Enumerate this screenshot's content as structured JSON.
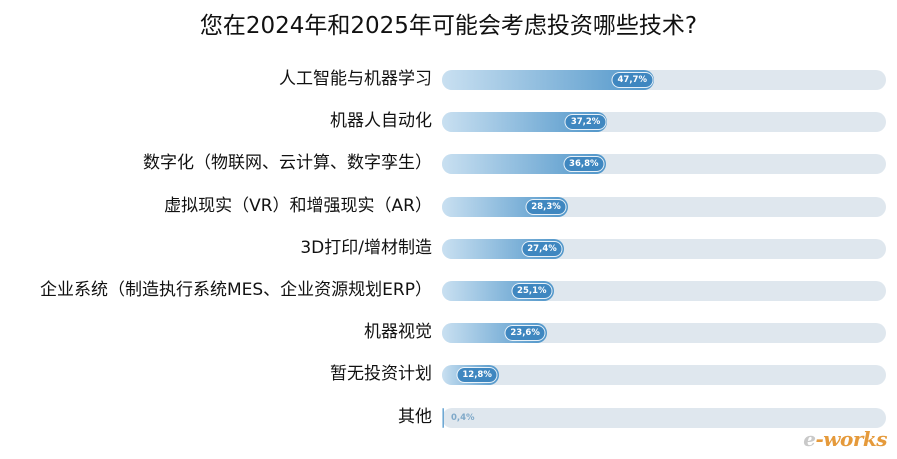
{
  "chart_data": {
    "type": "bar",
    "orientation": "horizontal",
    "title": "您在2024年和2025年可能会考虑投资哪些技术?",
    "categories": [
      "人工智能与机器学习",
      "机器人自动化",
      "数字化（物联网、云计算、数字孪生）",
      "虚拟现实（VR）和增强现实（AR）",
      "3D打印/增材制造",
      "企业系统（制造执行系统MES、企业资源规划ERP）",
      "机器视觉",
      "暂无投资计划",
      "其他"
    ],
    "values": [
      47.7,
      37.2,
      36.8,
      28.3,
      27.4,
      25.1,
      23.6,
      12.8,
      0.4
    ],
    "value_labels": [
      "47,7%",
      "37,2%",
      "36,8%",
      "28,3%",
      "27,4%",
      "25,1%",
      "23,6%",
      "12,8%",
      "0,4%"
    ],
    "xlim": [
      0,
      100
    ],
    "grid": false,
    "legend": "none",
    "colors": {
      "fill_start": "#c9e0f1",
      "fill_end": "#4f95c9",
      "track": "#dfe7ee",
      "pill": "#3f87c0"
    }
  },
  "watermark": {
    "dash": "e",
    "text": "-works",
    "icon": "e-works-logo"
  }
}
